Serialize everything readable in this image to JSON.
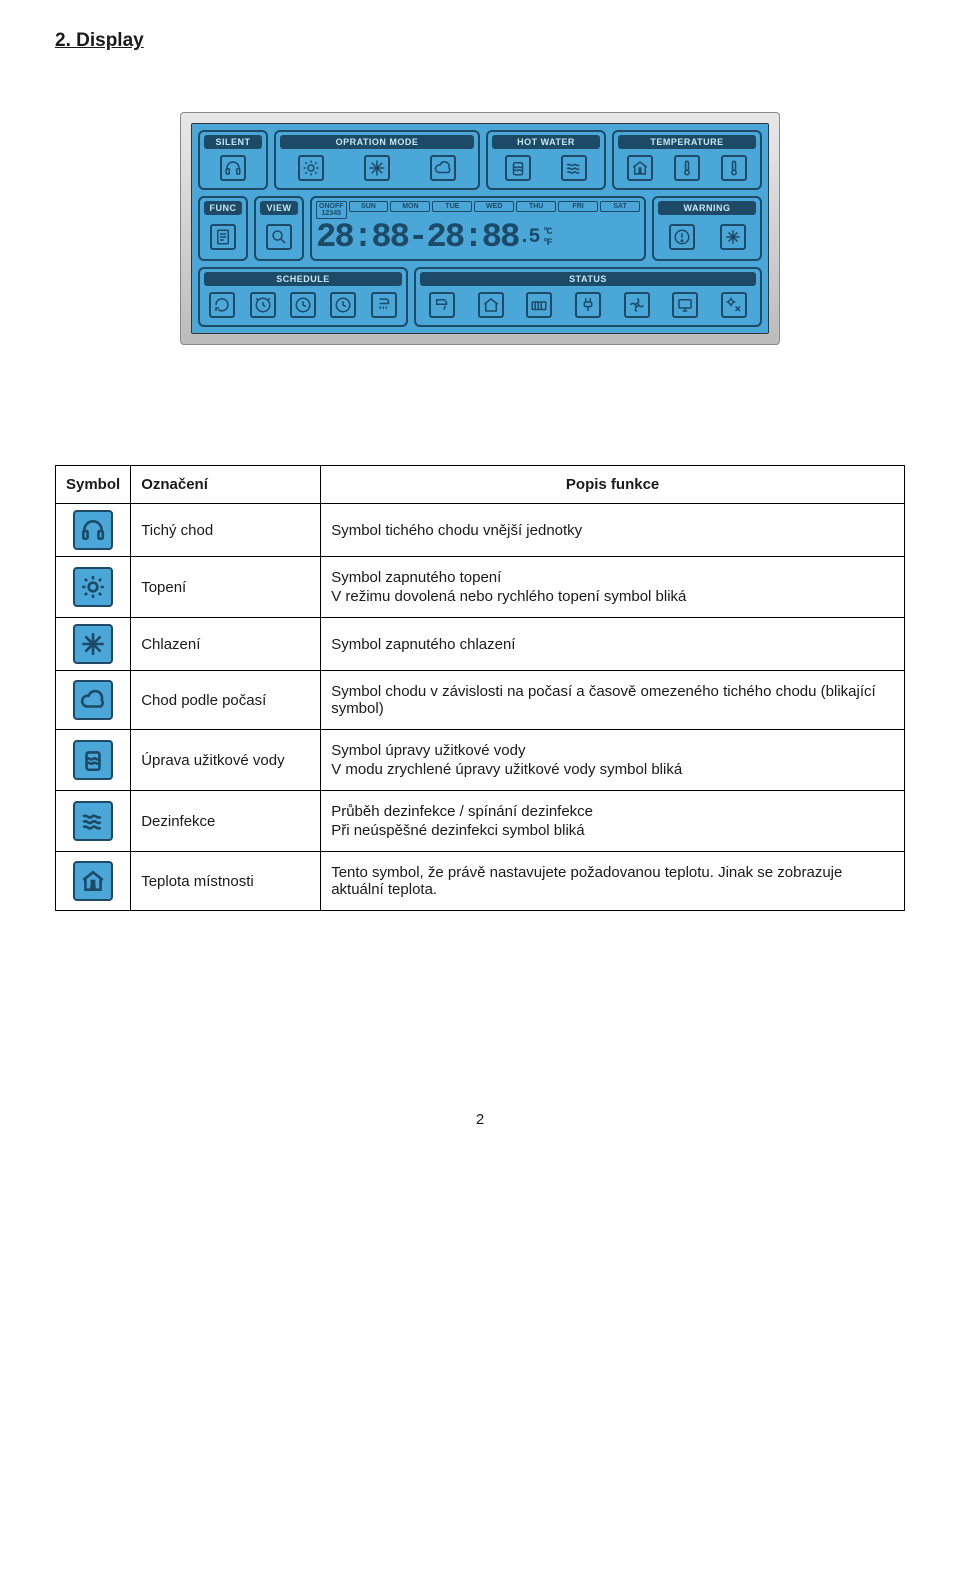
{
  "section_title": "2.  Display",
  "colors": {
    "lcd_bg": "#4aa7d8",
    "lcd_dark": "#1d4a66",
    "bezel_top": "#e8e8e8",
    "bezel_bottom": "#bcbcbc",
    "page_bg": "#ffffff",
    "text": "#1a1a1a",
    "border": "#000000"
  },
  "lcd": {
    "top": {
      "silent": {
        "label": "SILENT"
      },
      "opmode": {
        "label": "OPRATION MODE"
      },
      "hotwater": {
        "label": "HOT WATER"
      },
      "temperature": {
        "label": "TEMPERATURE"
      }
    },
    "mid": {
      "func": {
        "label": "FUNC"
      },
      "view": {
        "label": "VIEW"
      },
      "onoff_top": "ONOFF",
      "onoff_nums": "12345",
      "days": [
        "SUN",
        "MON",
        "TUE",
        "WED",
        "THU",
        "FRI",
        "SAT"
      ],
      "segments": "28:88-28:88",
      "seg_suffix": ".5",
      "unit_c": "°C",
      "unit_f": "°F",
      "warning": {
        "label": "WARNING"
      }
    },
    "bottom": {
      "schedule": {
        "label": "SCHEDULE"
      },
      "status": {
        "label": "STATUS"
      }
    }
  },
  "table": {
    "headers": {
      "symbol": "Symbol",
      "name": "Označení",
      "desc": "Popis funkce"
    },
    "rows": [
      {
        "icon": "headphones",
        "name": "Tichý chod",
        "desc": [
          "Symbol tichého chodu vnější jednotky"
        ]
      },
      {
        "icon": "sun",
        "name": "Topení",
        "desc": [
          "Symbol zapnutého topení",
          "V režimu dovolená nebo rychlého topení symbol bliká"
        ]
      },
      {
        "icon": "snow",
        "name": "Chlazení",
        "desc": [
          "Symbol zapnutého chlazení"
        ]
      },
      {
        "icon": "cloud",
        "name": "Chod podle počasí",
        "desc": [
          "Symbol chodu v závislosti na počasí  a časově omezeného tichého chodu (blikající symbol)"
        ]
      },
      {
        "icon": "tank",
        "name": "Úprava užitkové vody",
        "desc": [
          "Symbol úpravy užitkové vody",
          "V modu zrychlené úpravy užitkové vody symbol bliká"
        ]
      },
      {
        "icon": "waves",
        "name": "Dezinfekce",
        "desc": [
          "Průběh dezinfekce / spínání dezinfekce",
          "Při neúspěšné dezinfekci symbol bliká"
        ]
      },
      {
        "icon": "house-therm",
        "name": "Teplota místnosti",
        "desc": [
          "Tento symbol, že právě nastavujete požadovanou teplotu. Jinak se zobrazuje aktuální teplota."
        ]
      }
    ]
  },
  "page_number": "2"
}
